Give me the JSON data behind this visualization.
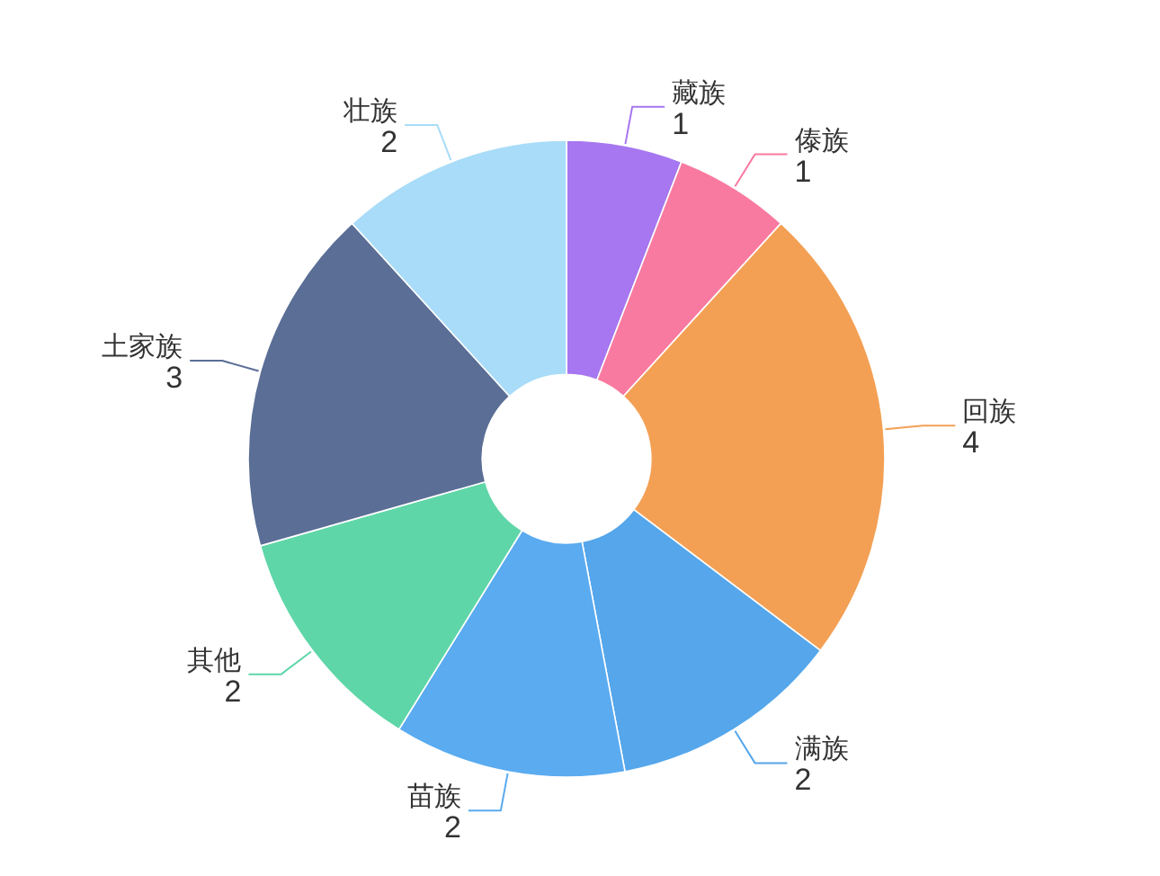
{
  "chart_data": {
    "type": "donut",
    "categories": [
      "藏族",
      "傣族",
      "回族",
      "满族",
      "苗族",
      "其他",
      "土家族",
      "壮族"
    ],
    "values": [
      1,
      1,
      4,
      2,
      2,
      2,
      3,
      2
    ],
    "colors": [
      "#a677f0",
      "#f97aa0",
      "#f3a055",
      "#55a6ea",
      "#5aabf0",
      "#5fd6a8",
      "#5a6e96",
      "#a8dcf8"
    ],
    "data_labels": true
  }
}
